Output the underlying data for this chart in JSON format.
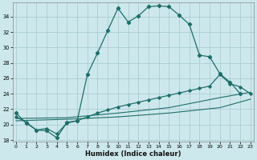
{
  "xlabel": "Humidex (Indice chaleur)",
  "bg_color": "#cde8ec",
  "grid_color": "#aacdd4",
  "line_color": "#1e6e6a",
  "series1_x": [
    0,
    1,
    2,
    3,
    4,
    5,
    6,
    7,
    8,
    9,
    10,
    11,
    12,
    13,
    14,
    15,
    16,
    17,
    18,
    19,
    20,
    21,
    22
  ],
  "series1_y": [
    21.5,
    20.2,
    19.3,
    19.2,
    18.3,
    20.3,
    20.5,
    26.5,
    29.3,
    32.2,
    35.1,
    33.3,
    34.1,
    35.3,
    35.4,
    35.3,
    34.2,
    33.0,
    29.0,
    28.8,
    26.6,
    25.5,
    24.0
  ],
  "series2_x": [
    0,
    1,
    2,
    3,
    4,
    5,
    6,
    7,
    8,
    9,
    10,
    11,
    12,
    13,
    14,
    15,
    16,
    17,
    18,
    19,
    20,
    21,
    22,
    23
  ],
  "series2_y": [
    21.0,
    20.3,
    19.3,
    19.5,
    18.8,
    20.2,
    20.5,
    21.0,
    21.5,
    21.9,
    22.3,
    22.6,
    22.9,
    23.2,
    23.5,
    23.8,
    24.1,
    24.4,
    24.7,
    25.0,
    26.5,
    25.3,
    24.9,
    24.0
  ],
  "series3_x": [
    0,
    5,
    10,
    15,
    20,
    23
  ],
  "series3_y": [
    20.8,
    20.9,
    21.5,
    22.2,
    23.5,
    24.2
  ],
  "series4_x": [
    0,
    5,
    10,
    15,
    20,
    23
  ],
  "series4_y": [
    20.5,
    20.7,
    21.0,
    21.5,
    22.2,
    23.3
  ],
  "xlim": [
    -0.3,
    23.3
  ],
  "ylim": [
    17.8,
    35.8
  ],
  "yticks": [
    18,
    20,
    22,
    24,
    26,
    28,
    30,
    32,
    34
  ],
  "xticks": [
    0,
    1,
    2,
    3,
    4,
    5,
    6,
    7,
    8,
    9,
    10,
    11,
    12,
    13,
    14,
    15,
    16,
    17,
    18,
    19,
    20,
    21,
    22,
    23
  ]
}
